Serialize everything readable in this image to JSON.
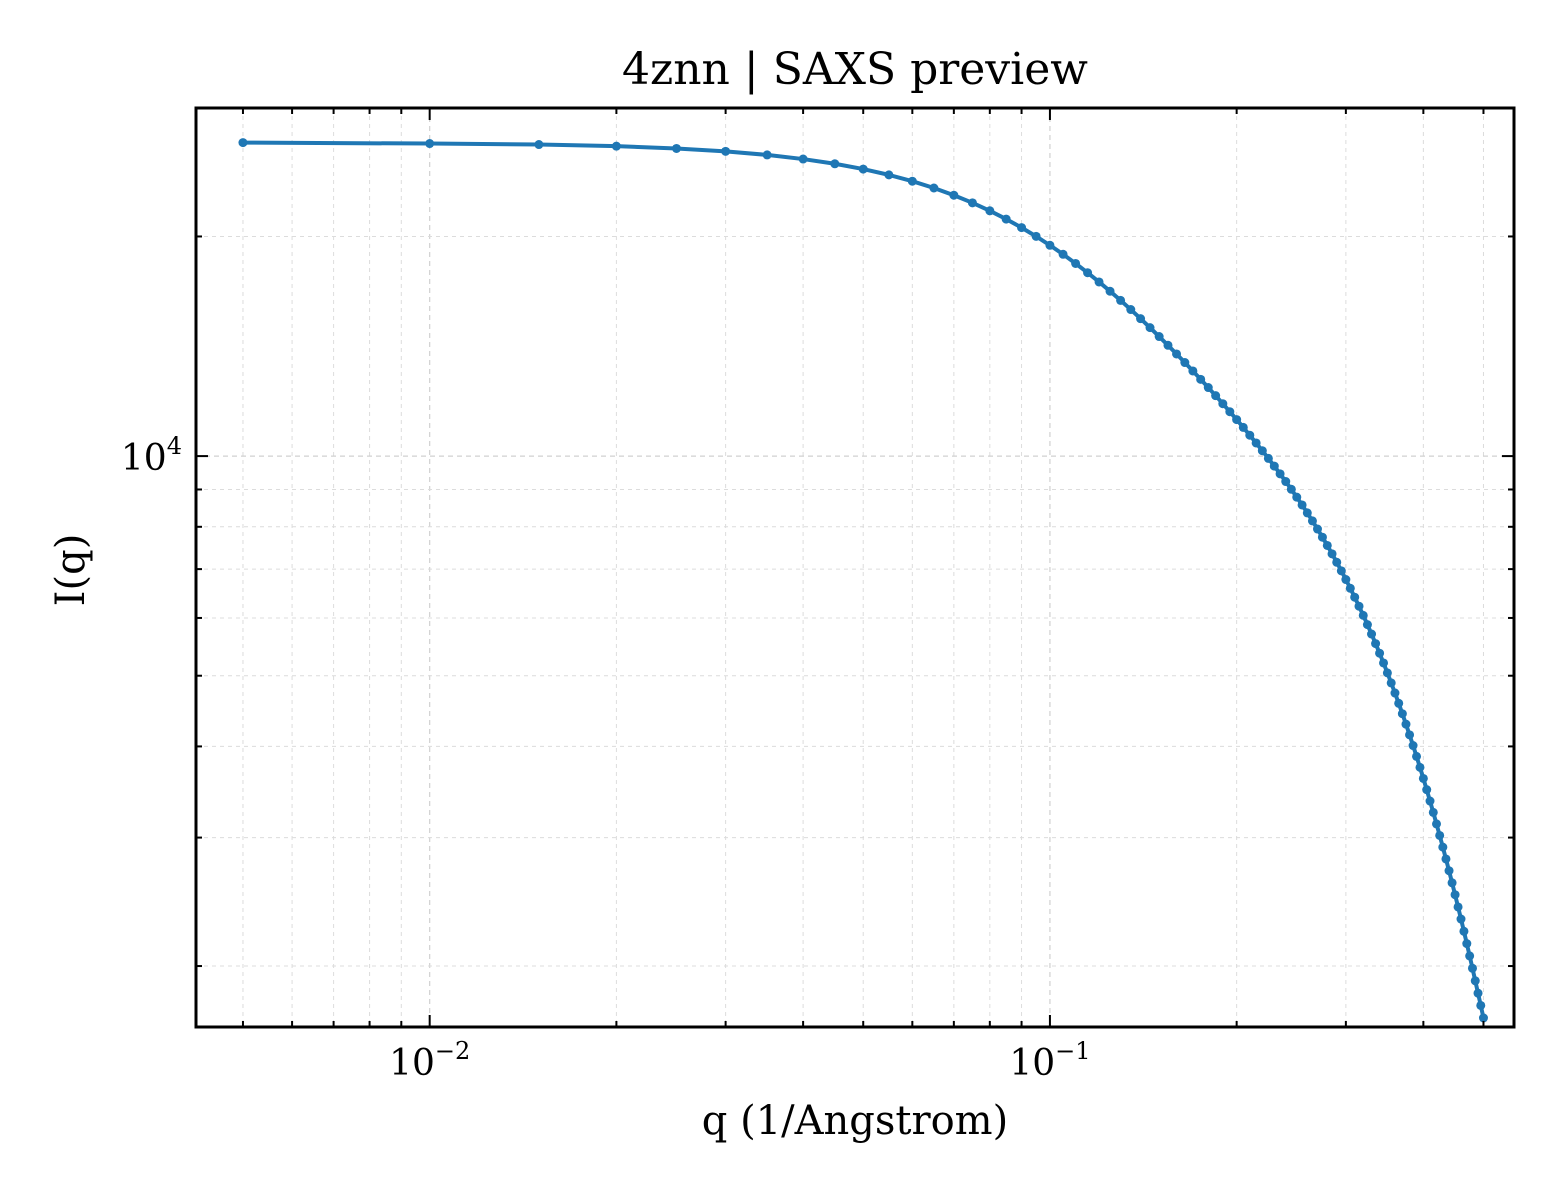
{
  "chart_data": {
    "type": "line",
    "title": "4znn | SAXS preview",
    "xlabel": "q (1/Angstrom)",
    "ylabel": "I(q)",
    "xscale": "log",
    "yscale": "log",
    "xlim": [
      0.0042,
      0.56
    ],
    "ylim": [
      1650,
      30000
    ],
    "grid": true,
    "legend": "none",
    "x_ticks": [
      {
        "value": 0.01,
        "base": "10",
        "exp": "−2"
      },
      {
        "value": 0.1,
        "base": "10",
        "exp": "−1"
      }
    ],
    "y_ticks": [
      {
        "value": 10000,
        "base": "10",
        "exp": "4"
      }
    ],
    "series": [
      {
        "color": "#1f77b4",
        "x": [
          0.005,
          0.01,
          0.015,
          0.02,
          0.025,
          0.03,
          0.035,
          0.04,
          0.045,
          0.05,
          0.055,
          0.06,
          0.065,
          0.07,
          0.075,
          0.08,
          0.085,
          0.09,
          0.095,
          0.1,
          0.105,
          0.11,
          0.115,
          0.12,
          0.125,
          0.13,
          0.135,
          0.14,
          0.145,
          0.15,
          0.155,
          0.16,
          0.165,
          0.17,
          0.175,
          0.18,
          0.185,
          0.19,
          0.195,
          0.2,
          0.205,
          0.21,
          0.215,
          0.22,
          0.225,
          0.23,
          0.235,
          0.24,
          0.245,
          0.25,
          0.255,
          0.26,
          0.265,
          0.27,
          0.275,
          0.28,
          0.285,
          0.29,
          0.295,
          0.3,
          0.305,
          0.31,
          0.315,
          0.32,
          0.325,
          0.33,
          0.335,
          0.34,
          0.345,
          0.35,
          0.355,
          0.36,
          0.365,
          0.37,
          0.375,
          0.38,
          0.385,
          0.39,
          0.395,
          0.4,
          0.405,
          0.41,
          0.415,
          0.42,
          0.425,
          0.43,
          0.435,
          0.44,
          0.445,
          0.45,
          0.455,
          0.46,
          0.465,
          0.47,
          0.475,
          0.48,
          0.485,
          0.49,
          0.495,
          0.5
        ],
        "y": [
          26896,
          26815,
          26734,
          26597,
          26405,
          26163,
          25871,
          25535,
          25158,
          24741,
          24292,
          23811,
          23306,
          22781,
          22240,
          21688,
          21129,
          20568,
          20008,
          19453,
          18905,
          18366,
          17839,
          17326,
          16827,
          16345,
          15880,
          15431,
          15000,
          14585,
          14186,
          13803,
          13435,
          13082,
          12742,
          12415,
          12101,
          11797,
          11504,
          11221,
          10947,
          10681,
          10423,
          10172,
          9928,
          9689,
          9456,
          9228,
          9005,
          8785,
          8570,
          8358,
          8150,
          7944,
          7742,
          7543,
          7346,
          7153,
          6962,
          6774,
          6589,
          6406,
          6226,
          6049,
          5875,
          5703,
          5534,
          5368,
          5205,
          5045,
          4888,
          4734,
          4583,
          4435,
          4291,
          4149,
          4011,
          3876,
          3744,
          3615,
          3490,
          3367,
          3248,
          3132,
          3020,
          2911,
          2804,
          2702,
          2601,
          2505,
          2410,
          2320,
          2232,
          2147,
          2065,
          1986,
          1909,
          1836,
          1766,
          1698
        ]
      }
    ]
  }
}
